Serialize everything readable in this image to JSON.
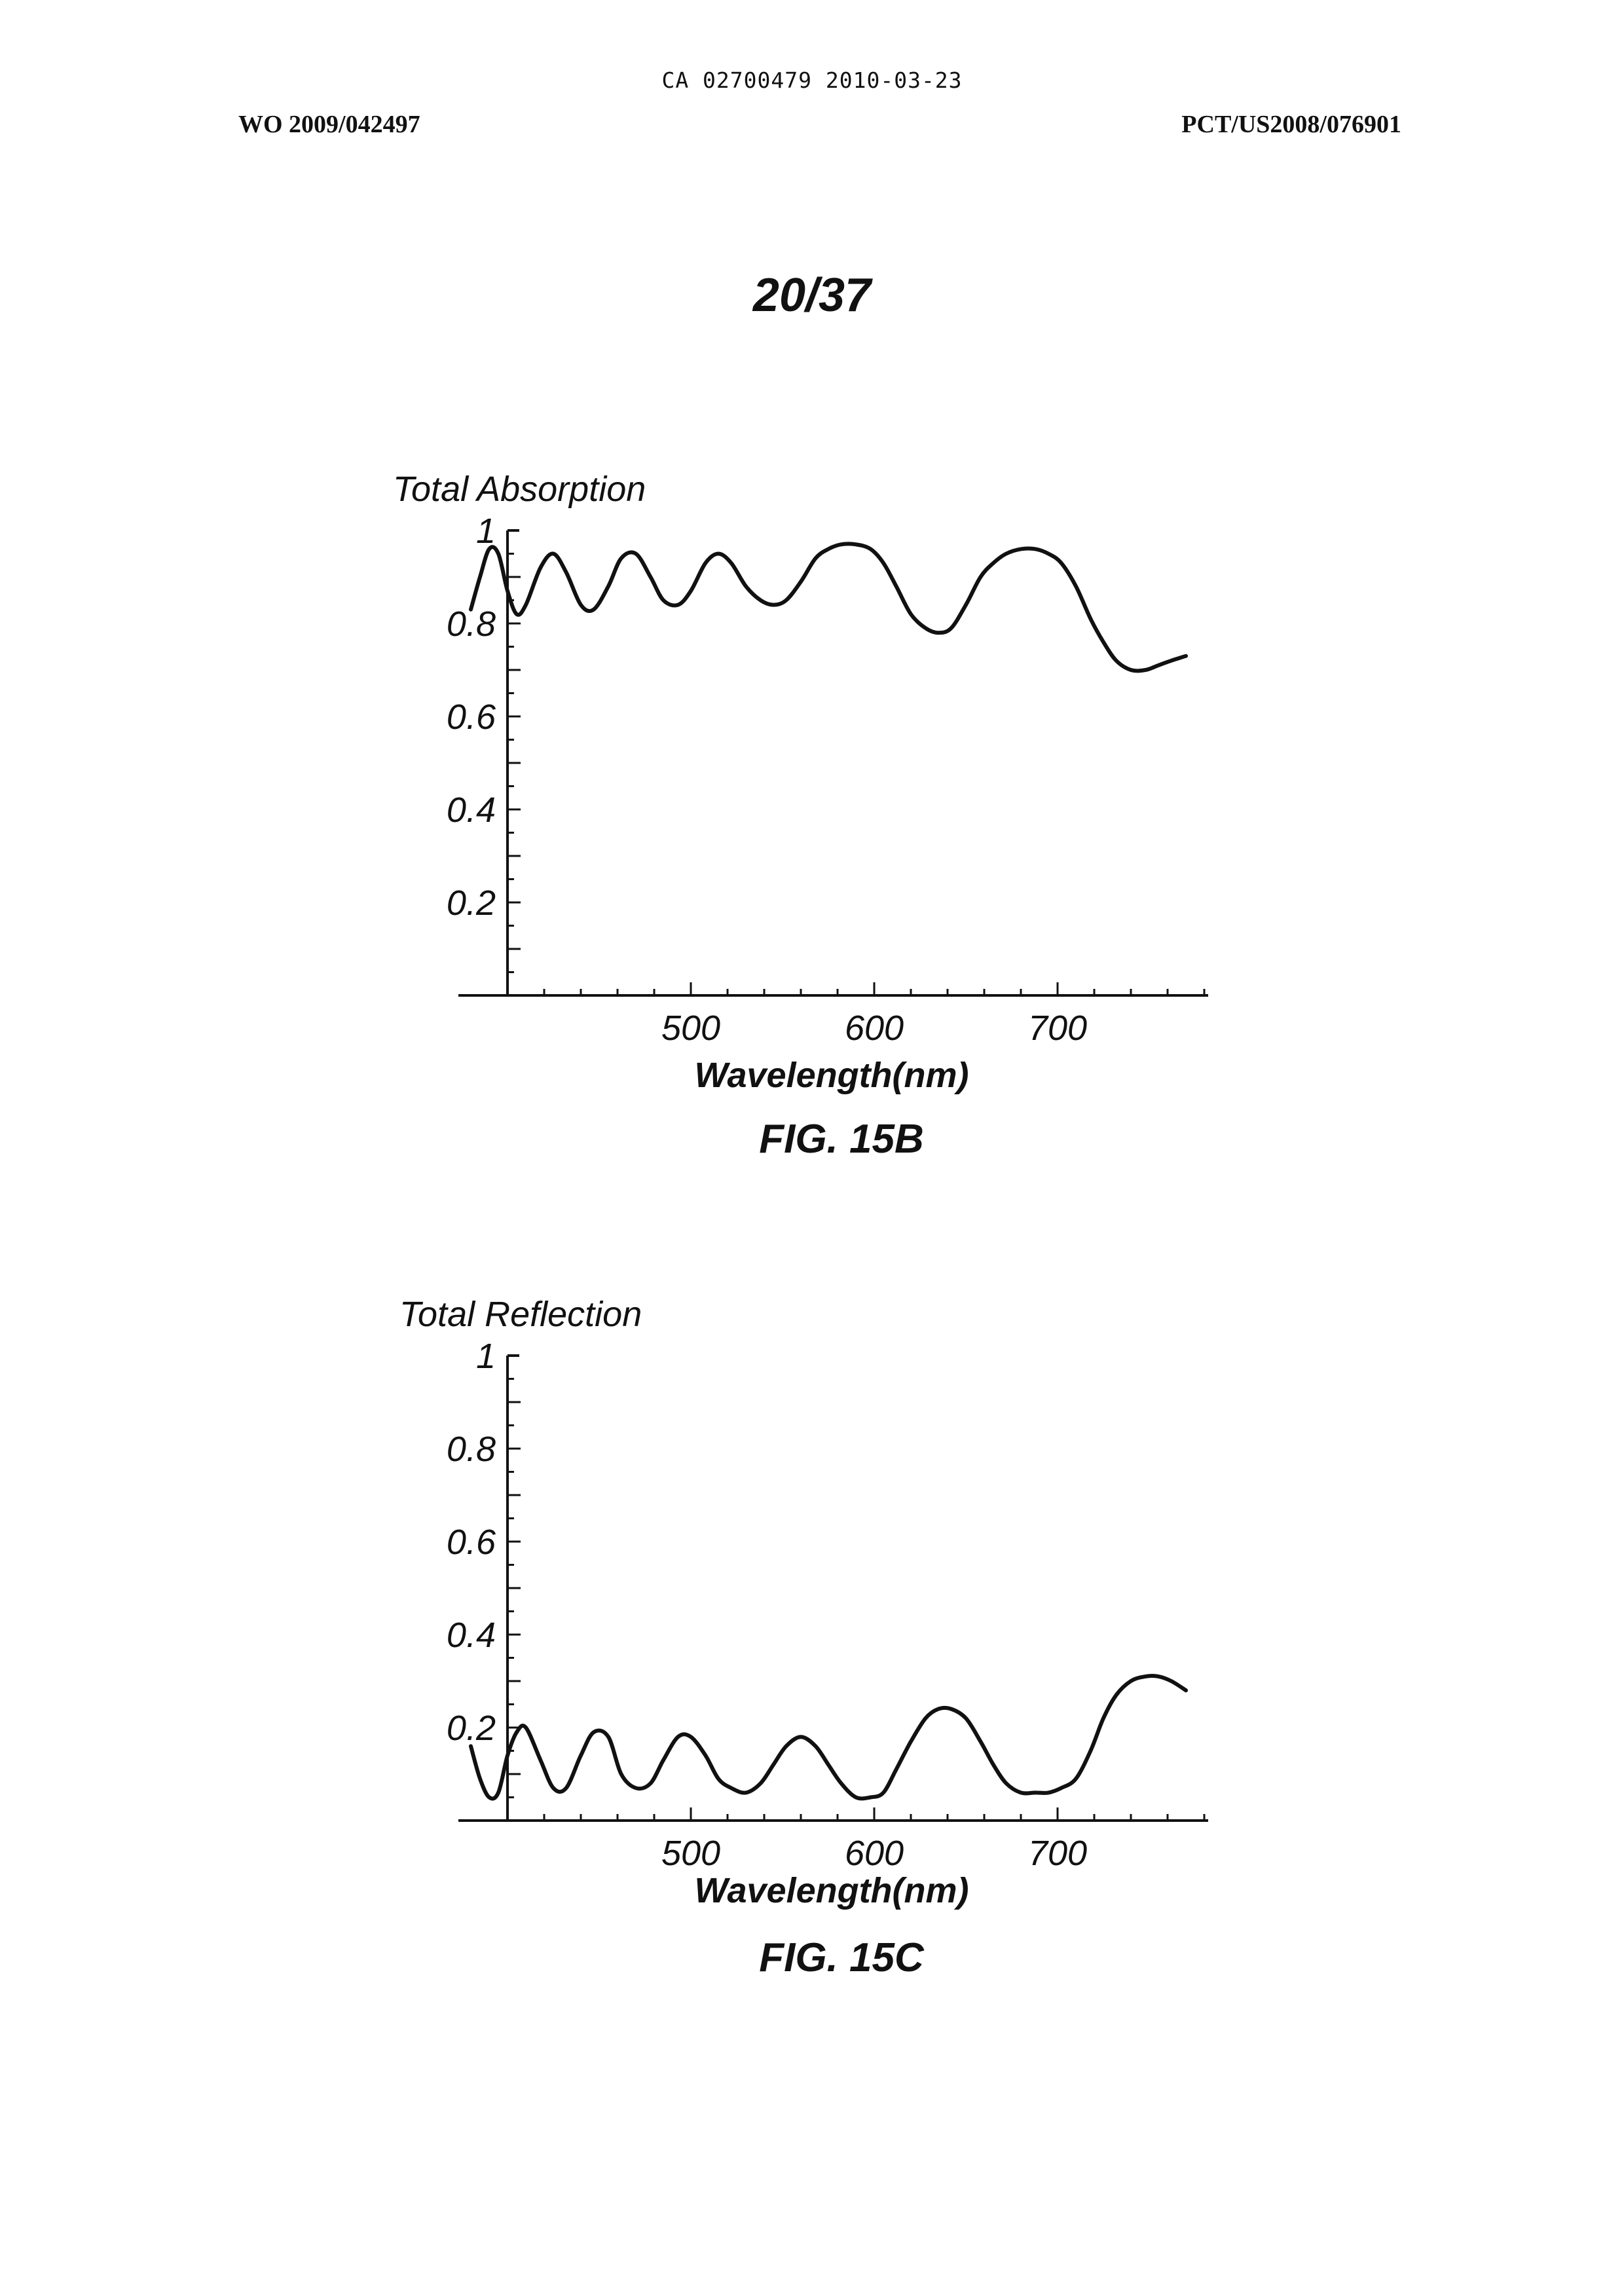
{
  "header": {
    "top_line": "CA 02700479 2010-03-23",
    "left": "WO 2009/042497",
    "right": "PCT/US2008/076901",
    "sheet": "20/37"
  },
  "chart_data": [
    {
      "type": "line",
      "figure_label": "FIG. 15B",
      "ylabel": "Total Absorption",
      "xlabel": "Wavelength(nm)",
      "xlim": [
        375,
        780
      ],
      "ylim": [
        0,
        1
      ],
      "xticks": [
        500,
        600,
        700
      ],
      "yticks": [
        0.2,
        0.4,
        0.6,
        0.8,
        1
      ],
      "grid": false,
      "series": [
        {
          "x": [
            380,
            385,
            390,
            395,
            400,
            405,
            410,
            418,
            425,
            432,
            440,
            447,
            455,
            462,
            470,
            478,
            485,
            493,
            500,
            508,
            515,
            522,
            530,
            538,
            545,
            552,
            560,
            568,
            575,
            582,
            590,
            598,
            605,
            612,
            620,
            628,
            635,
            642,
            650,
            658,
            665,
            672,
            680,
            688,
            695,
            702,
            710,
            718,
            725,
            732,
            740,
            748,
            755,
            762,
            770
          ],
          "y": [
            0.83,
            0.9,
            0.96,
            0.95,
            0.87,
            0.82,
            0.84,
            0.92,
            0.95,
            0.91,
            0.84,
            0.83,
            0.88,
            0.94,
            0.95,
            0.9,
            0.85,
            0.84,
            0.87,
            0.93,
            0.95,
            0.93,
            0.88,
            0.85,
            0.84,
            0.85,
            0.89,
            0.94,
            0.96,
            0.97,
            0.97,
            0.96,
            0.93,
            0.88,
            0.82,
            0.79,
            0.78,
            0.79,
            0.84,
            0.9,
            0.93,
            0.95,
            0.96,
            0.96,
            0.95,
            0.93,
            0.88,
            0.81,
            0.76,
            0.72,
            0.7,
            0.7,
            0.71,
            0.72,
            0.73
          ]
        }
      ]
    },
    {
      "type": "line",
      "figure_label": "FIG. 15C",
      "ylabel": "Total Reflection",
      "xlabel": "Wavelength(nm)",
      "xlim": [
        375,
        780
      ],
      "ylim": [
        0,
        1
      ],
      "xticks": [
        500,
        600,
        700
      ],
      "yticks": [
        0.2,
        0.4,
        0.6,
        0.8,
        1
      ],
      "grid": false,
      "series": [
        {
          "x": [
            380,
            385,
            390,
            395,
            400,
            405,
            410,
            418,
            425,
            432,
            440,
            447,
            455,
            462,
            470,
            478,
            485,
            493,
            500,
            508,
            515,
            522,
            530,
            538,
            545,
            552,
            560,
            568,
            575,
            582,
            590,
            598,
            605,
            612,
            620,
            628,
            635,
            642,
            650,
            658,
            665,
            672,
            680,
            688,
            695,
            702,
            710,
            718,
            725,
            732,
            740,
            748,
            755,
            762,
            770
          ],
          "y": [
            0.16,
            0.09,
            0.05,
            0.06,
            0.14,
            0.19,
            0.2,
            0.13,
            0.07,
            0.07,
            0.14,
            0.19,
            0.18,
            0.1,
            0.07,
            0.08,
            0.13,
            0.18,
            0.18,
            0.14,
            0.09,
            0.07,
            0.06,
            0.08,
            0.12,
            0.16,
            0.18,
            0.16,
            0.12,
            0.08,
            0.05,
            0.05,
            0.06,
            0.11,
            0.17,
            0.22,
            0.24,
            0.24,
            0.22,
            0.17,
            0.12,
            0.08,
            0.06,
            0.06,
            0.06,
            0.07,
            0.09,
            0.15,
            0.22,
            0.27,
            0.3,
            0.31,
            0.31,
            0.3,
            0.28
          ]
        }
      ]
    }
  ]
}
